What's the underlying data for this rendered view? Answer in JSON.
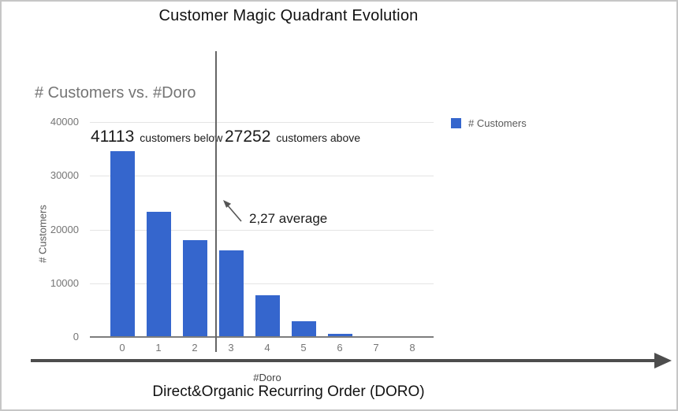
{
  "slide": {
    "title": "Customer Magic Quadrant Evolution",
    "footer_title": "Direct&Organic Recurring Order (DORO)"
  },
  "chart": {
    "title": "# Customers vs. #Doro",
    "legend_label": "# Customers",
    "y_axis_title": "# Customers",
    "x_axis_title": "#Doro"
  },
  "annotations": {
    "below_value": "41113",
    "below_label": "customers below",
    "above_value": "27252",
    "above_label": "customers above",
    "average_label": "2,27 average"
  },
  "colors": {
    "bar": "#3566CD",
    "gridline": "#e4e4e4",
    "axis_baseline": "#7d7d7d",
    "tick_text": "#757575",
    "divider_line": "#666666",
    "annotation_arrow": "#555555",
    "big_arrow": "#4d4d4d",
    "slide_border": "#c6c6c6"
  },
  "chart_data": {
    "type": "bar",
    "title": "# Customers vs. #Doro",
    "categories": [
      "0",
      "1",
      "2",
      "3",
      "4",
      "5",
      "6",
      "7",
      "8"
    ],
    "series": [
      {
        "name": "# Customers",
        "values": [
          34400,
          23100,
          17900,
          15900,
          7600,
          2800,
          400,
          0,
          0
        ]
      }
    ],
    "xlabel": "#Doro",
    "ylabel": "# Customers",
    "ylim": [
      0,
      40000
    ],
    "yticks": [
      0,
      10000,
      20000,
      30000,
      40000
    ],
    "grid": true,
    "legend_position": "top-right",
    "bar_color": "#3566CD",
    "annotations": {
      "customers_below_average_line": 41113,
      "customers_above_average_line": 27252,
      "average_doro": 2.27,
      "average_label": "2,27 average"
    }
  }
}
